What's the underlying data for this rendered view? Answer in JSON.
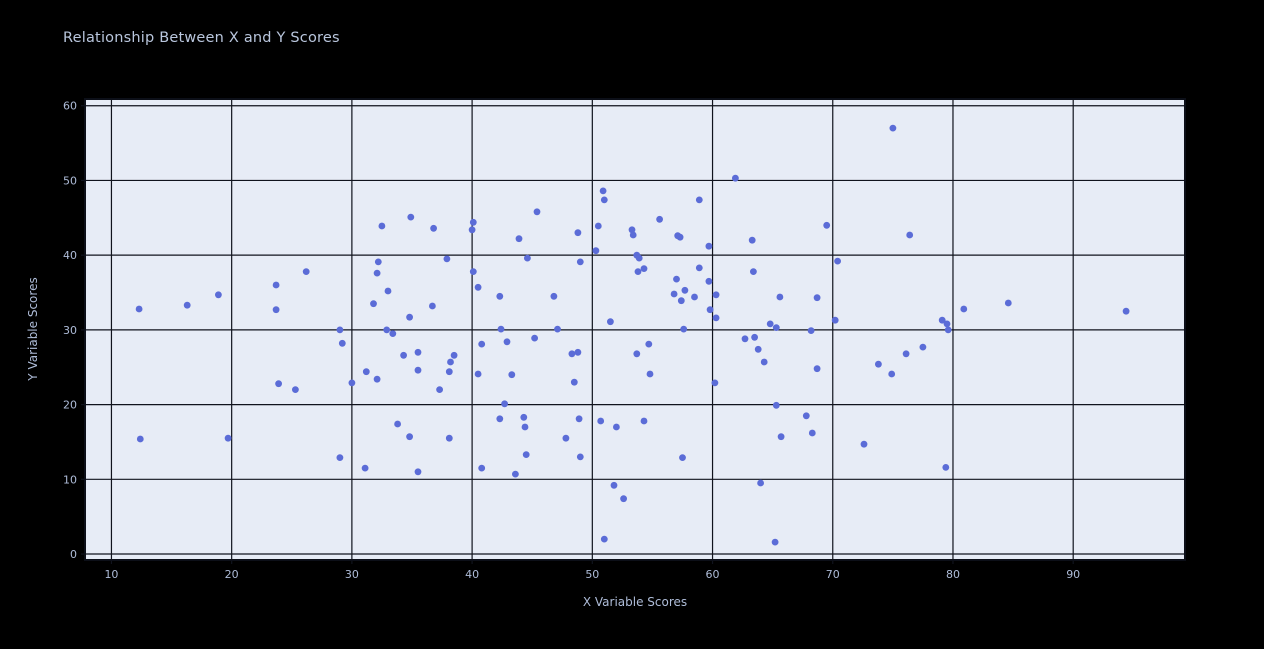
{
  "chart_data": {
    "type": "scatter",
    "title": "Relationship Between X and Y Scores",
    "xlabel": "X Variable Scores",
    "ylabel": "Y Variable Scores",
    "xlim": [
      7.8,
      99.3
    ],
    "ylim": [
      -0.8,
      60.9
    ],
    "xticks": [
      10,
      20,
      30,
      40,
      50,
      60,
      70,
      80,
      90
    ],
    "yticks": [
      0,
      10,
      20,
      30,
      40,
      50,
      60
    ],
    "grid": true,
    "legend": false,
    "colors": {
      "figure_background": "#000000",
      "plot_background": "#e7ecf6",
      "gridline": "#10131d",
      "spine": "#0c0f18",
      "marker": "#5b6cd7",
      "title_text": "#b9c6dd",
      "tick_text": "#aebcd8"
    },
    "points": [
      [
        12.3,
        32.8
      ],
      [
        16.3,
        33.3
      ],
      [
        18.9,
        34.7
      ],
      [
        23.7,
        36.0
      ],
      [
        23.7,
        32.7
      ],
      [
        26.2,
        37.8
      ],
      [
        29.0,
        30.0
      ],
      [
        29.2,
        28.2
      ],
      [
        23.9,
        22.8
      ],
      [
        25.3,
        22.0
      ],
      [
        30.0,
        22.9
      ],
      [
        12.4,
        15.4
      ],
      [
        19.7,
        15.5
      ],
      [
        29.0,
        12.9
      ],
      [
        31.2,
        24.4
      ],
      [
        31.1,
        11.5
      ],
      [
        34.9,
        45.1
      ],
      [
        32.5,
        43.9
      ],
      [
        36.8,
        43.6
      ],
      [
        40.1,
        44.4
      ],
      [
        40.0,
        43.4
      ],
      [
        45.4,
        45.8
      ],
      [
        43.9,
        42.2
      ],
      [
        50.9,
        48.6
      ],
      [
        51.0,
        47.4
      ],
      [
        50.5,
        43.9
      ],
      [
        48.8,
        43.0
      ],
      [
        50.3,
        40.6
      ],
      [
        37.9,
        39.5
      ],
      [
        32.2,
        39.1
      ],
      [
        32.1,
        37.6
      ],
      [
        44.6,
        39.6
      ],
      [
        49.0,
        39.1
      ],
      [
        40.1,
        37.8
      ],
      [
        33.0,
        35.2
      ],
      [
        40.5,
        35.7
      ],
      [
        42.3,
        34.5
      ],
      [
        46.8,
        34.5
      ],
      [
        31.8,
        33.5
      ],
      [
        36.7,
        33.2
      ],
      [
        34.8,
        31.7
      ],
      [
        32.9,
        30.0
      ],
      [
        33.4,
        29.5
      ],
      [
        42.4,
        30.1
      ],
      [
        47.1,
        30.1
      ],
      [
        51.5,
        31.1
      ],
      [
        40.8,
        28.1
      ],
      [
        42.9,
        28.4
      ],
      [
        45.2,
        28.9
      ],
      [
        34.3,
        26.6
      ],
      [
        35.5,
        27.0
      ],
      [
        38.5,
        26.6
      ],
      [
        38.2,
        25.7
      ],
      [
        32.1,
        23.4
      ],
      [
        35.5,
        24.6
      ],
      [
        38.1,
        24.4
      ],
      [
        37.3,
        22.0
      ],
      [
        40.5,
        24.1
      ],
      [
        43.3,
        24.0
      ],
      [
        48.5,
        23.0
      ],
      [
        48.3,
        26.8
      ],
      [
        48.8,
        27.0
      ],
      [
        42.7,
        20.1
      ],
      [
        33.8,
        17.4
      ],
      [
        34.8,
        15.7
      ],
      [
        38.1,
        15.5
      ],
      [
        35.5,
        11.0
      ],
      [
        42.3,
        18.1
      ],
      [
        44.3,
        18.3
      ],
      [
        44.4,
        17.0
      ],
      [
        48.9,
        18.1
      ],
      [
        50.7,
        17.8
      ],
      [
        52.0,
        17.0
      ],
      [
        47.8,
        15.5
      ],
      [
        44.5,
        13.3
      ],
      [
        49.0,
        13.0
      ],
      [
        40.8,
        11.5
      ],
      [
        43.6,
        10.7
      ],
      [
        51.8,
        9.2
      ],
      [
        52.6,
        7.4
      ],
      [
        51.0,
        2.0
      ],
      [
        75.0,
        57.0
      ],
      [
        61.9,
        50.3
      ],
      [
        58.9,
        47.4
      ],
      [
        55.6,
        44.8
      ],
      [
        57.1,
        42.6
      ],
      [
        57.3,
        42.4
      ],
      [
        63.3,
        42.0
      ],
      [
        69.5,
        44.0
      ],
      [
        76.4,
        42.7
      ],
      [
        59.7,
        41.2
      ],
      [
        70.4,
        39.2
      ],
      [
        54.3,
        38.2
      ],
      [
        53.8,
        37.8
      ],
      [
        58.9,
        38.3
      ],
      [
        63.4,
        37.8
      ],
      [
        57.0,
        36.8
      ],
      [
        59.7,
        36.5
      ],
      [
        57.7,
        35.3
      ],
      [
        56.8,
        34.8
      ],
      [
        57.4,
        33.9
      ],
      [
        58.5,
        34.4
      ],
      [
        60.3,
        34.7
      ],
      [
        65.6,
        34.4
      ],
      [
        68.7,
        34.3
      ],
      [
        59.8,
        32.7
      ],
      [
        60.3,
        31.6
      ],
      [
        64.8,
        30.8
      ],
      [
        65.3,
        30.3
      ],
      [
        70.2,
        31.3
      ],
      [
        68.2,
        29.9
      ],
      [
        57.6,
        30.1
      ],
      [
        53.3,
        43.4
      ],
      [
        53.4,
        42.7
      ],
      [
        53.7,
        40.0
      ],
      [
        53.9,
        39.6
      ],
      [
        53.7,
        26.8
      ],
      [
        54.7,
        28.1
      ],
      [
        54.8,
        24.1
      ],
      [
        60.2,
        22.9
      ],
      [
        62.7,
        28.8
      ],
      [
        63.5,
        29.0
      ],
      [
        63.8,
        27.4
      ],
      [
        64.3,
        25.7
      ],
      [
        68.7,
        24.8
      ],
      [
        73.8,
        25.4
      ],
      [
        74.9,
        24.1
      ],
      [
        76.1,
        26.8
      ],
      [
        65.3,
        19.9
      ],
      [
        67.8,
        18.5
      ],
      [
        54.3,
        17.8
      ],
      [
        65.7,
        15.7
      ],
      [
        68.3,
        16.2
      ],
      [
        72.6,
        14.7
      ],
      [
        57.5,
        12.9
      ],
      [
        64.0,
        9.5
      ],
      [
        65.2,
        1.6
      ],
      [
        80.9,
        32.8
      ],
      [
        84.6,
        33.6
      ],
      [
        79.1,
        31.3
      ],
      [
        79.5,
        30.8
      ],
      [
        79.6,
        30.0
      ],
      [
        94.4,
        32.5
      ],
      [
        77.5,
        27.7
      ],
      [
        79.4,
        11.6
      ]
    ]
  }
}
